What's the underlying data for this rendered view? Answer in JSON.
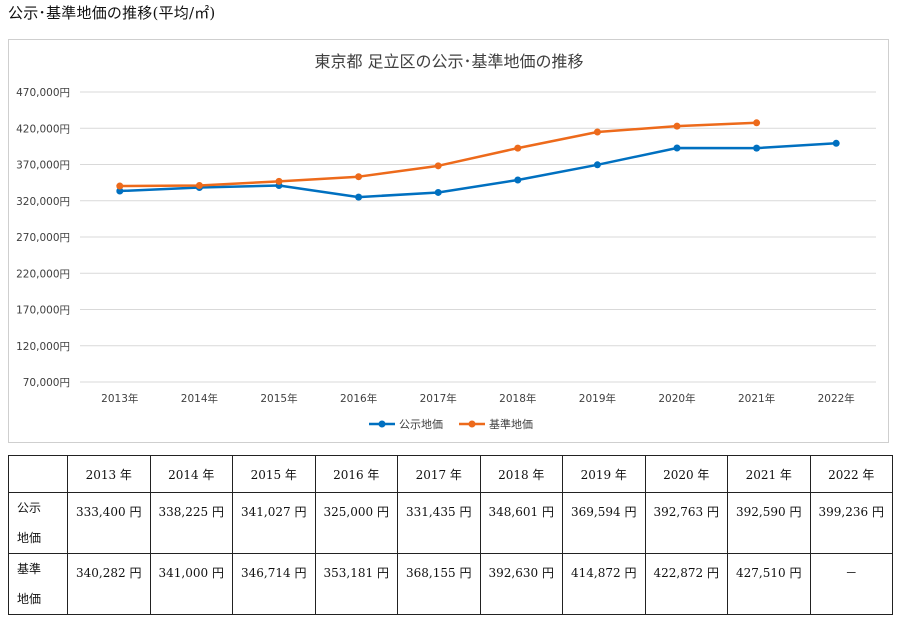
{
  "page": {
    "title": "公示･基準地価の推移(平均/㎡)"
  },
  "chart_data": {
    "type": "line",
    "title": "東京都 足立区の公示･基準地価の推移",
    "categories": [
      "2013年",
      "2014年",
      "2015年",
      "2016年",
      "2017年",
      "2018年",
      "2019年",
      "2020年",
      "2021年",
      "2022年"
    ],
    "series": [
      {
        "name": "公示地価",
        "color": "#0070c0",
        "values": [
          333400,
          338225,
          341027,
          325000,
          331435,
          348601,
          369594,
          392763,
          392590,
          399236
        ]
      },
      {
        "name": "基準地価",
        "color": "#ed6a1b",
        "values": [
          340282,
          341000,
          346714,
          353181,
          368155,
          392630,
          414872,
          422872,
          427510,
          null
        ]
      }
    ],
    "ylim": [
      70000,
      470000
    ],
    "yticks": [
      70000,
      120000,
      170000,
      220000,
      270000,
      320000,
      370000,
      420000,
      470000
    ],
    "ytick_labels": [
      "70,000円",
      "120,000円",
      "170,000円",
      "220,000円",
      "270,000円",
      "320,000円",
      "370,000円",
      "420,000円",
      "470,000円"
    ],
    "legend_position": "bottom",
    "grid": true
  },
  "table": {
    "headers": [
      "",
      "2013 年",
      "2014 年",
      "2015 年",
      "2016 年",
      "2017 年",
      "2018 年",
      "2019 年",
      "2020 年",
      "2021 年",
      "2022 年"
    ],
    "rows": [
      {
        "label_line1": "公示",
        "label_line2": "地価",
        "cells": [
          "333,400 円",
          "338,225 円",
          "341,027 円",
          "325,000 円",
          "331,435 円",
          "348,601 円",
          "369,594 円",
          "392,763 円",
          "392,590 円",
          "399,236 円"
        ]
      },
      {
        "label_line1": "基準",
        "label_line2": "地価",
        "cells": [
          "340,282 円",
          "341,000 円",
          "346,714 円",
          "353,181 円",
          "368,155 円",
          "392,630 円",
          "414,872 円",
          "422,872 円",
          "427,510 円",
          "－"
        ]
      }
    ]
  }
}
